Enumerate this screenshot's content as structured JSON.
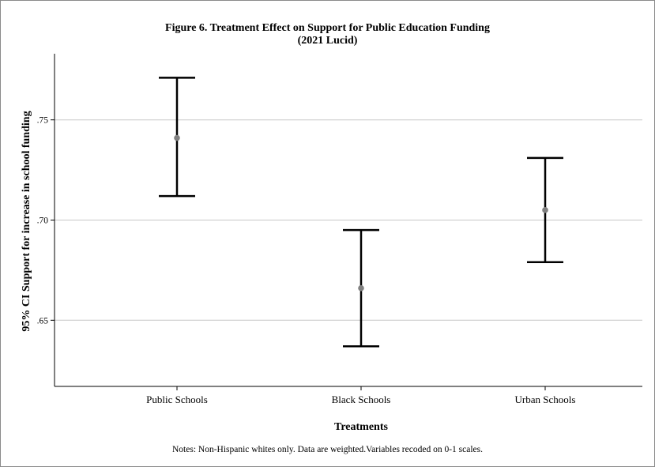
{
  "chart_data": {
    "type": "errorbar",
    "title": "Figure 6. Treatment Effect on Support for Public Education Funding",
    "subtitle": "(2021 Lucid)",
    "xlabel": "Treatments",
    "ylabel": "95% CI Support for increase in school funding",
    "categories": [
      "Public Schools",
      "Black Schools",
      "Urban Schools"
    ],
    "means": [
      0.741,
      0.666,
      0.705
    ],
    "lower": [
      0.712,
      0.637,
      0.679
    ],
    "upper": [
      0.771,
      0.695,
      0.731
    ],
    "yticks": [
      0.65,
      0.7,
      0.75
    ],
    "ytick_labels": [
      ".65",
      ".70",
      ".75"
    ],
    "ylim": [
      0.617,
      0.783
    ],
    "grid": true,
    "legend": "none",
    "colors": {
      "bar": "#000000",
      "point": "#808080",
      "grid": "#c8c8c8"
    }
  },
  "notes": "Notes: Non-Hispanic whites only. Data are weighted.Variables recoded on 0-1 scales."
}
